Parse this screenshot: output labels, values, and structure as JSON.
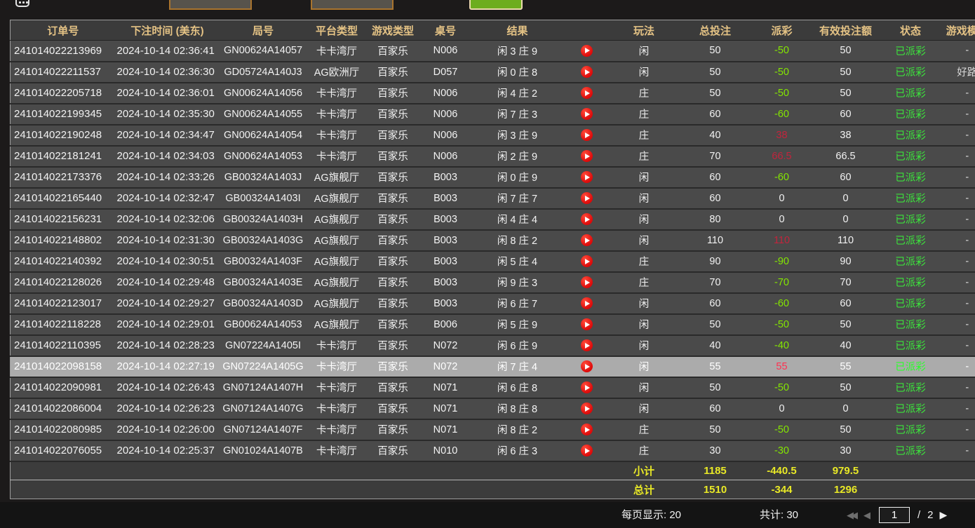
{
  "colors": {
    "header_text": "#e5c385",
    "payout_negative": "#84e600",
    "payout_positive": "#c2243c",
    "status_green": "#3ce43c",
    "footer_yellow": "#e9e926",
    "button_green": "#6dad1e",
    "input_border_orange": "#a9742e",
    "highlight_row": "#ababab",
    "replay_icon_red": "#dc0a0a"
  },
  "table": {
    "headers": [
      "订单号",
      "下注时间 (美东)",
      "局号",
      "平台类型",
      "游戏类型",
      "桌号",
      "结果",
      "",
      "玩法",
      "总投注",
      "派彩",
      "有效投注额",
      "状态",
      "游戏模式"
    ],
    "rows": [
      {
        "order_id": "241014022213969",
        "time": "2024-10-14 02:36:41",
        "round": "GN00624A14057",
        "platform": "卡卡湾厅",
        "game_type": "百家乐",
        "table_no": "N006",
        "result": "闲 3 庄 9",
        "bet_on": "闲",
        "total_bet": "50",
        "payout": "-50",
        "valid_bet": "50",
        "status": "已派彩",
        "game_mode": "-",
        "highlighted": false
      },
      {
        "order_id": "241014022211537",
        "time": "2024-10-14 02:36:30",
        "round": "GD05724A140J3",
        "platform": "AG欧洲厅",
        "game_type": "百家乐",
        "table_no": "D057",
        "result": "闲 0 庄 8",
        "bet_on": "闲",
        "total_bet": "50",
        "payout": "-50",
        "valid_bet": "50",
        "status": "已派彩",
        "game_mode": "好路",
        "highlighted": false
      },
      {
        "order_id": "241014022205718",
        "time": "2024-10-14 02:36:01",
        "round": "GN00624A14056",
        "platform": "卡卡湾厅",
        "game_type": "百家乐",
        "table_no": "N006",
        "result": "闲 4 庄 2",
        "bet_on": "庄",
        "total_bet": "50",
        "payout": "-50",
        "valid_bet": "50",
        "status": "已派彩",
        "game_mode": "-",
        "highlighted": false
      },
      {
        "order_id": "241014022199345",
        "time": "2024-10-14 02:35:30",
        "round": "GN00624A14055",
        "platform": "卡卡湾厅",
        "game_type": "百家乐",
        "table_no": "N006",
        "result": "闲 7 庄 3",
        "bet_on": "庄",
        "total_bet": "60",
        "payout": "-60",
        "valid_bet": "60",
        "status": "已派彩",
        "game_mode": "-",
        "highlighted": false
      },
      {
        "order_id": "241014022190248",
        "time": "2024-10-14 02:34:47",
        "round": "GN00624A14054",
        "platform": "卡卡湾厅",
        "game_type": "百家乐",
        "table_no": "N006",
        "result": "闲 3 庄 9",
        "bet_on": "庄",
        "total_bet": "40",
        "payout": "38",
        "valid_bet": "38",
        "status": "已派彩",
        "game_mode": "-",
        "highlighted": false
      },
      {
        "order_id": "241014022181241",
        "time": "2024-10-14 02:34:03",
        "round": "GN00624A14053",
        "platform": "卡卡湾厅",
        "game_type": "百家乐",
        "table_no": "N006",
        "result": "闲 2 庄 9",
        "bet_on": "庄",
        "total_bet": "70",
        "payout": "66.5",
        "valid_bet": "66.5",
        "status": "已派彩",
        "game_mode": "-",
        "highlighted": false
      },
      {
        "order_id": "241014022173376",
        "time": "2024-10-14 02:33:26",
        "round": "GB00324A1403J",
        "platform": "AG旗舰厅",
        "game_type": "百家乐",
        "table_no": "B003",
        "result": "闲 0 庄 9",
        "bet_on": "闲",
        "total_bet": "60",
        "payout": "-60",
        "valid_bet": "60",
        "status": "已派彩",
        "game_mode": "-",
        "highlighted": false
      },
      {
        "order_id": "241014022165440",
        "time": "2024-10-14 02:32:47",
        "round": "GB00324A1403I",
        "platform": "AG旗舰厅",
        "game_type": "百家乐",
        "table_no": "B003",
        "result": "闲 7 庄 7",
        "bet_on": "闲",
        "total_bet": "60",
        "payout": "0",
        "valid_bet": "0",
        "status": "已派彩",
        "game_mode": "-",
        "highlighted": false
      },
      {
        "order_id": "241014022156231",
        "time": "2024-10-14 02:32:06",
        "round": "GB00324A1403H",
        "platform": "AG旗舰厅",
        "game_type": "百家乐",
        "table_no": "B003",
        "result": "闲 4 庄 4",
        "bet_on": "闲",
        "total_bet": "80",
        "payout": "0",
        "valid_bet": "0",
        "status": "已派彩",
        "game_mode": "-",
        "highlighted": false
      },
      {
        "order_id": "241014022148802",
        "time": "2024-10-14 02:31:30",
        "round": "GB00324A1403G",
        "platform": "AG旗舰厅",
        "game_type": "百家乐",
        "table_no": "B003",
        "result": "闲 8 庄 2",
        "bet_on": "闲",
        "total_bet": "110",
        "payout": "110",
        "valid_bet": "110",
        "status": "已派彩",
        "game_mode": "-",
        "highlighted": false
      },
      {
        "order_id": "241014022140392",
        "time": "2024-10-14 02:30:51",
        "round": "GB00324A1403F",
        "platform": "AG旗舰厅",
        "game_type": "百家乐",
        "table_no": "B003",
        "result": "闲 5 庄 4",
        "bet_on": "庄",
        "total_bet": "90",
        "payout": "-90",
        "valid_bet": "90",
        "status": "已派彩",
        "game_mode": "-",
        "highlighted": false
      },
      {
        "order_id": "241014022128026",
        "time": "2024-10-14 02:29:48",
        "round": "GB00324A1403E",
        "platform": "AG旗舰厅",
        "game_type": "百家乐",
        "table_no": "B003",
        "result": "闲 9 庄 3",
        "bet_on": "庄",
        "total_bet": "70",
        "payout": "-70",
        "valid_bet": "70",
        "status": "已派彩",
        "game_mode": "-",
        "highlighted": false
      },
      {
        "order_id": "241014022123017",
        "time": "2024-10-14 02:29:27",
        "round": "GB00324A1403D",
        "platform": "AG旗舰厅",
        "game_type": "百家乐",
        "table_no": "B003",
        "result": "闲 6 庄 7",
        "bet_on": "闲",
        "total_bet": "60",
        "payout": "-60",
        "valid_bet": "60",
        "status": "已派彩",
        "game_mode": "-",
        "highlighted": false
      },
      {
        "order_id": "241014022118228",
        "time": "2024-10-14 02:29:01",
        "round": "GB00624A14053",
        "platform": "AG旗舰厅",
        "game_type": "百家乐",
        "table_no": "B006",
        "result": "闲 5 庄 9",
        "bet_on": "闲",
        "total_bet": "50",
        "payout": "-50",
        "valid_bet": "50",
        "status": "已派彩",
        "game_mode": "-",
        "highlighted": false
      },
      {
        "order_id": "241014022110395",
        "time": "2024-10-14 02:28:23",
        "round": "GN07224A1405I",
        "platform": "卡卡湾厅",
        "game_type": "百家乐",
        "table_no": "N072",
        "result": "闲 6 庄 9",
        "bet_on": "闲",
        "total_bet": "40",
        "payout": "-40",
        "valid_bet": "40",
        "status": "已派彩",
        "game_mode": "-",
        "highlighted": false
      },
      {
        "order_id": "241014022098158",
        "time": "2024-10-14 02:27:19",
        "round": "GN07224A1405G",
        "platform": "卡卡湾厅",
        "game_type": "百家乐",
        "table_no": "N072",
        "result": "闲 7 庄 4",
        "bet_on": "闲",
        "total_bet": "55",
        "payout": "55",
        "valid_bet": "55",
        "status": "已派彩",
        "game_mode": "-",
        "highlighted": true
      },
      {
        "order_id": "241014022090981",
        "time": "2024-10-14 02:26:43",
        "round": "GN07124A1407H",
        "platform": "卡卡湾厅",
        "game_type": "百家乐",
        "table_no": "N071",
        "result": "闲 6 庄 8",
        "bet_on": "闲",
        "total_bet": "50",
        "payout": "-50",
        "valid_bet": "50",
        "status": "已派彩",
        "game_mode": "-",
        "highlighted": false
      },
      {
        "order_id": "241014022086004",
        "time": "2024-10-14 02:26:23",
        "round": "GN07124A1407G",
        "platform": "卡卡湾厅",
        "game_type": "百家乐",
        "table_no": "N071",
        "result": "闲 8 庄 8",
        "bet_on": "闲",
        "total_bet": "60",
        "payout": "0",
        "valid_bet": "0",
        "status": "已派彩",
        "game_mode": "-",
        "highlighted": false
      },
      {
        "order_id": "241014022080985",
        "time": "2024-10-14 02:26:00",
        "round": "GN07124A1407F",
        "platform": "卡卡湾厅",
        "game_type": "百家乐",
        "table_no": "N071",
        "result": "闲 8 庄 2",
        "bet_on": "庄",
        "total_bet": "50",
        "payout": "-50",
        "valid_bet": "50",
        "status": "已派彩",
        "game_mode": "-",
        "highlighted": false
      },
      {
        "order_id": "241014022076055",
        "time": "2024-10-14 02:25:37",
        "round": "GN01024A1407B",
        "platform": "卡卡湾厅",
        "game_type": "百家乐",
        "table_no": "N010",
        "result": "闲 6 庄 3",
        "bet_on": "庄",
        "total_bet": "30",
        "payout": "-30",
        "valid_bet": "30",
        "status": "已派彩",
        "game_mode": "-",
        "highlighted": false
      }
    ],
    "subtotal": {
      "label": "小计",
      "total_bet": "1185",
      "payout": "-440.5",
      "valid_bet": "979.5"
    },
    "total": {
      "label": "总计",
      "total_bet": "1510",
      "payout": "-344",
      "valid_bet": "1296"
    }
  },
  "pagination": {
    "per_page_label": "每页显示:",
    "per_page_value": "20",
    "total_label": "共计:",
    "total_value": "30",
    "current_page": "1",
    "page_separator": "/",
    "total_pages": "2"
  }
}
